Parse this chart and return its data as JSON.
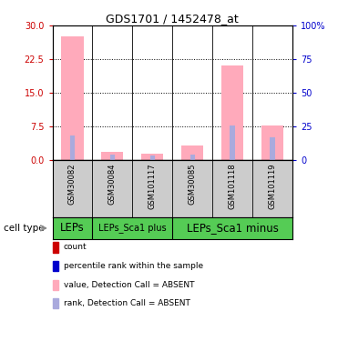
{
  "title": "GDS1701 / 1452478_at",
  "samples": [
    "GSM30082",
    "GSM30084",
    "GSM101117",
    "GSM30085",
    "GSM101118",
    "GSM101119"
  ],
  "value_absent": [
    27.5,
    1.8,
    1.4,
    3.2,
    21.0,
    7.8
  ],
  "rank_absent": [
    5.5,
    1.3,
    1.1,
    1.3,
    7.6,
    5.0
  ],
  "left_ylim": [
    0,
    30
  ],
  "left_yticks": [
    0,
    7.5,
    15,
    22.5,
    30
  ],
  "right_ylim": [
    0,
    100
  ],
  "right_yticks": [
    0,
    25,
    50,
    75,
    100
  ],
  "right_yticklabels": [
    "0",
    "25",
    "50",
    "75",
    "100%"
  ],
  "color_value_absent": "#ffaabb",
  "color_rank_absent": "#aaaadd",
  "color_count": "#cc0000",
  "color_rank_line": "#0000cc",
  "pink_bar_width": 0.55,
  "blue_bar_width": 0.12,
  "cell_types": [
    {
      "label": "LEPs",
      "start": 0,
      "end": 0,
      "color": "#55cc55"
    },
    {
      "label": "LEPs_Sca1 plus",
      "start": 1,
      "end": 2,
      "color": "#55cc55"
    },
    {
      "label": "LEPs_Sca1 minus",
      "start": 3,
      "end": 5,
      "color": "#44bb44"
    }
  ],
  "legend_items": [
    {
      "label": "count",
      "color": "#cc0000"
    },
    {
      "label": "percentile rank within the sample",
      "color": "#0000cc"
    },
    {
      "label": "value, Detection Call = ABSENT",
      "color": "#ffaabb"
    },
    {
      "label": "rank, Detection Call = ABSENT",
      "color": "#aaaadd"
    }
  ],
  "cell_type_label": "cell type",
  "gridline_color": "black",
  "gridline_style": "dotted",
  "bg_color": "white",
  "label_panel_color": "#cccccc",
  "cell_panel_color": "#55cc55"
}
